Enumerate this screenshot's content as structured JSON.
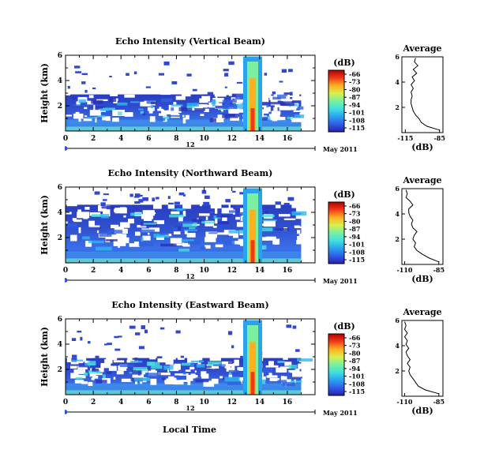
{
  "figure": {
    "x_label": "Local Time",
    "date_label": "May 2011",
    "colorbar_unit": "(dB)",
    "colorbar_ticks": [
      "-66",
      "-73",
      "-80",
      "-87",
      "-94",
      "-101",
      "-108",
      "-115"
    ],
    "colorbar_colors": [
      "#2a1fb0",
      "#2f5de8",
      "#2aa3ee",
      "#3fe0e0",
      "#7af0a0",
      "#d8f04a",
      "#ffb020",
      "#f03a1a",
      "#b00000"
    ],
    "y_label": "Height (km)"
  },
  "chart_data": [
    {
      "type": "heatmap",
      "title": "Echo Intensity (Vertical Beam)",
      "ylabel": "Height (km)",
      "x_ticks": [
        "0",
        "2",
        "4",
        "6",
        "8",
        "10",
        "12",
        "14",
        "16"
      ],
      "y_ticks": [
        "6",
        "4",
        "2"
      ],
      "xlim": [
        0,
        18
      ],
      "ylim": [
        0,
        6
      ],
      "data_end_hour": 17,
      "day_label": "12",
      "profile": {
        "title": "Average",
        "xlabel": "(dB)",
        "x_ticks": [
          "-115",
          "-85"
        ],
        "y_ticks": [
          "6",
          "4",
          "2"
        ],
        "xlim": [
          -118,
          -82
        ],
        "height": [
          0.2,
          0.5,
          0.8,
          1.1,
          1.4,
          1.7,
          2.0,
          2.3,
          2.6,
          2.9,
          3.2,
          3.5,
          3.8,
          4.1,
          4.4,
          4.7,
          5.0,
          5.3,
          5.6,
          5.9
        ],
        "value": [
          -85,
          -96,
          -101,
          -103,
          -106,
          -108,
          -109,
          -110,
          -110,
          -109,
          -110,
          -108,
          -110,
          -107,
          -109,
          -105,
          -108,
          -104,
          -107,
          -106
        ]
      }
    },
    {
      "type": "heatmap",
      "title": "Echo Intensity (Northward Beam)",
      "ylabel": "Height (km)",
      "x_ticks": [
        "0",
        "2",
        "4",
        "6",
        "8",
        "10",
        "12",
        "14",
        "16"
      ],
      "y_ticks": [
        "6",
        "4",
        "2"
      ],
      "xlim": [
        0,
        18
      ],
      "ylim": [
        0,
        6
      ],
      "data_end_hour": 17,
      "day_label": "12",
      "profile": {
        "title": "Average",
        "xlabel": "(dB)",
        "x_ticks": [
          "-110",
          "-85"
        ],
        "y_ticks": [
          "6",
          "4",
          "2"
        ],
        "xlim": [
          -112,
          -82
        ],
        "height": [
          0.2,
          0.5,
          0.8,
          1.1,
          1.4,
          1.7,
          2.0,
          2.3,
          2.6,
          2.9,
          3.2,
          3.5,
          3.8,
          4.1,
          4.4,
          4.7,
          5.0,
          5.3,
          5.6,
          5.9
        ],
        "value": [
          -85,
          -92,
          -97,
          -101,
          -103,
          -102,
          -104,
          -103,
          -101,
          -104,
          -105,
          -104,
          -106,
          -107,
          -107,
          -104,
          -106,
          -109,
          -108,
          -109
        ]
      }
    },
    {
      "type": "heatmap",
      "title": "Echo Intensity (Eastward Beam)",
      "ylabel": "Height (km)",
      "xlabel": "Local Time",
      "x_ticks": [
        "0",
        "2",
        "4",
        "6",
        "8",
        "10",
        "12",
        "14",
        "16"
      ],
      "y_ticks": [
        "6",
        "4",
        "2"
      ],
      "xlim": [
        0,
        18
      ],
      "ylim": [
        0,
        6
      ],
      "data_end_hour": 17,
      "day_label": "12",
      "profile": {
        "title": "Average",
        "xlabel": "(dB)",
        "x_ticks": [
          "-110",
          "-85"
        ],
        "y_ticks": [
          "6",
          "4",
          "2"
        ],
        "xlim": [
          -112,
          -82
        ],
        "height": [
          0.2,
          0.5,
          0.8,
          1.1,
          1.4,
          1.7,
          2.0,
          2.3,
          2.6,
          2.9,
          3.2,
          3.5,
          3.8,
          4.1,
          4.4,
          4.7,
          5.0,
          5.3,
          5.6,
          5.9
        ],
        "value": [
          -85,
          -95,
          -100,
          -102,
          -104,
          -106,
          -107,
          -106,
          -108,
          -106,
          -108,
          -109,
          -107,
          -109,
          -108,
          -110,
          -108,
          -110,
          -109,
          -110
        ]
      }
    }
  ]
}
